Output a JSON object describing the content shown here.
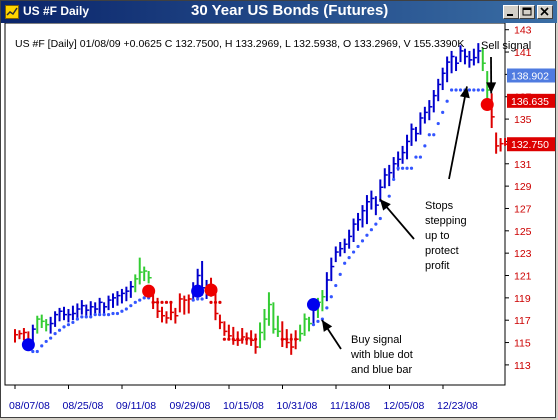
{
  "window": {
    "symbol": "US #F Daily",
    "title": "30 Year US Bonds (Futures)",
    "buttons": [
      "minimize",
      "maximize",
      "close"
    ]
  },
  "colors": {
    "titlebar": "#0a246a",
    "up_bar": "#0000cc",
    "down_bar": "#dd0000",
    "neutral_bar": "#33cc33",
    "buy_dot": "#0000ee",
    "sell_dot": "#ee0000",
    "grid": "#b8d8ea",
    "price_label_blue": "#4f7be0",
    "price_label_red": "#dd0000"
  },
  "chart_data": {
    "type": "ohlc",
    "info_line": "US #F [Daily] 01/08/09 +0.0625 C 132.7500, H 133.2969, L 132.5938, O 133.2969, V 155.3390K",
    "x_ticks": [
      "08/07/08",
      "08/25/08",
      "09/11/08",
      "09/29/08",
      "10/15/08",
      "10/31/08",
      "11/18/08",
      "12/05/08",
      "12/23/08"
    ],
    "y_ticks": [
      113,
      115,
      117,
      119,
      121,
      123,
      125,
      127,
      129,
      131,
      133,
      135,
      137,
      139,
      141,
      143
    ],
    "ylim": [
      111.2,
      143.6
    ],
    "grid": true,
    "price_labels": [
      {
        "text": "138.902",
        "value": 138.902,
        "color": "blue"
      },
      {
        "text": "136.635",
        "value": 136.635,
        "color": "red"
      },
      {
        "text": "132.750",
        "value": 132.75,
        "color": "red"
      }
    ],
    "bars": [
      {
        "h": 116.2,
        "l": 115.0,
        "c": 115.7,
        "color": "red"
      },
      {
        "h": 116.1,
        "l": 115.3,
        "c": 115.8,
        "color": "red"
      },
      {
        "h": 116.3,
        "l": 115.2,
        "c": 115.9,
        "color": "red"
      },
      {
        "h": 116.0,
        "l": 114.8,
        "c": 115.2,
        "color": "red"
      },
      {
        "h": 116.6,
        "l": 114.7,
        "c": 116.2,
        "color": "blue"
      },
      {
        "h": 117.4,
        "l": 115.8,
        "c": 117.1,
        "color": "green"
      },
      {
        "h": 117.5,
        "l": 116.3,
        "c": 116.9,
        "color": "green"
      },
      {
        "h": 117.1,
        "l": 116.0,
        "c": 116.6,
        "color": "green"
      },
      {
        "h": 117.3,
        "l": 115.8,
        "c": 116.7,
        "color": "blue"
      },
      {
        "h": 117.8,
        "l": 116.4,
        "c": 117.5,
        "color": "blue"
      },
      {
        "h": 118.1,
        "l": 116.9,
        "c": 117.8,
        "color": "blue"
      },
      {
        "h": 118.2,
        "l": 117.0,
        "c": 117.5,
        "color": "blue"
      },
      {
        "h": 118.0,
        "l": 116.8,
        "c": 117.5,
        "color": "blue"
      },
      {
        "h": 118.3,
        "l": 117.0,
        "c": 117.6,
        "color": "blue"
      },
      {
        "h": 118.5,
        "l": 117.2,
        "c": 118.0,
        "color": "blue"
      },
      {
        "h": 118.8,
        "l": 117.5,
        "c": 118.3,
        "color": "blue"
      },
      {
        "h": 118.4,
        "l": 117.2,
        "c": 117.9,
        "color": "blue"
      },
      {
        "h": 118.7,
        "l": 117.4,
        "c": 118.2,
        "color": "blue"
      },
      {
        "h": 118.6,
        "l": 117.5,
        "c": 118.0,
        "color": "blue"
      },
      {
        "h": 119.0,
        "l": 117.6,
        "c": 118.6,
        "color": "blue"
      },
      {
        "h": 118.6,
        "l": 117.6,
        "c": 118.2,
        "color": "blue"
      },
      {
        "h": 119.2,
        "l": 117.9,
        "c": 118.8,
        "color": "blue"
      },
      {
        "h": 119.4,
        "l": 118.1,
        "c": 119.0,
        "color": "blue"
      },
      {
        "h": 119.6,
        "l": 118.3,
        "c": 119.2,
        "color": "blue"
      },
      {
        "h": 119.8,
        "l": 118.5,
        "c": 119.4,
        "color": "blue"
      },
      {
        "h": 120.0,
        "l": 118.7,
        "c": 119.6,
        "color": "blue"
      },
      {
        "h": 120.5,
        "l": 119.0,
        "c": 120.0,
        "color": "blue"
      },
      {
        "h": 121.1,
        "l": 119.5,
        "c": 120.7,
        "color": "green"
      },
      {
        "h": 122.6,
        "l": 120.2,
        "c": 121.3,
        "color": "green"
      },
      {
        "h": 121.8,
        "l": 120.5,
        "c": 121.4,
        "color": "green"
      },
      {
        "h": 121.4,
        "l": 120.3,
        "c": 120.8,
        "color": "green"
      },
      {
        "h": 119.3,
        "l": 118.0,
        "c": 118.6,
        "color": "red"
      },
      {
        "h": 119.0,
        "l": 117.2,
        "c": 117.8,
        "color": "red"
      },
      {
        "h": 118.2,
        "l": 116.8,
        "c": 117.4,
        "color": "red"
      },
      {
        "h": 117.8,
        "l": 116.7,
        "c": 117.2,
        "color": "red"
      },
      {
        "h": 118.5,
        "l": 117.0,
        "c": 117.7,
        "color": "red"
      },
      {
        "h": 118.1,
        "l": 116.7,
        "c": 117.4,
        "color": "red"
      },
      {
        "h": 119.4,
        "l": 117.7,
        "c": 118.9,
        "color": "red"
      },
      {
        "h": 119.2,
        "l": 117.5,
        "c": 118.8,
        "color": "red"
      },
      {
        "h": 119.3,
        "l": 117.6,
        "c": 118.9,
        "color": "red"
      },
      {
        "h": 120.4,
        "l": 118.8,
        "c": 119.7,
        "color": "blue"
      },
      {
        "h": 121.6,
        "l": 119.6,
        "c": 121.0,
        "color": "blue"
      },
      {
        "h": 122.3,
        "l": 119.2,
        "c": 119.9,
        "color": "blue"
      },
      {
        "h": 120.6,
        "l": 118.9,
        "c": 119.6,
        "color": "blue"
      },
      {
        "h": 120.8,
        "l": 119.1,
        "c": 119.8,
        "color": "red"
      },
      {
        "h": 119.5,
        "l": 117.0,
        "c": 117.6,
        "color": "red"
      },
      {
        "h": 117.5,
        "l": 116.2,
        "c": 116.8,
        "color": "red"
      },
      {
        "h": 116.9,
        "l": 115.6,
        "c": 116.0,
        "color": "red"
      },
      {
        "h": 116.6,
        "l": 115.2,
        "c": 115.6,
        "color": "red"
      },
      {
        "h": 116.4,
        "l": 114.8,
        "c": 115.2,
        "color": "red"
      },
      {
        "h": 116.0,
        "l": 114.7,
        "c": 115.2,
        "color": "red"
      },
      {
        "h": 116.3,
        "l": 114.9,
        "c": 115.5,
        "color": "red"
      },
      {
        "h": 115.9,
        "l": 114.8,
        "c": 115.4,
        "color": "red"
      },
      {
        "h": 116.1,
        "l": 114.7,
        "c": 115.2,
        "color": "red"
      },
      {
        "h": 115.8,
        "l": 114.0,
        "c": 114.6,
        "color": "red"
      },
      {
        "h": 116.8,
        "l": 114.5,
        "c": 115.9,
        "color": "green"
      },
      {
        "h": 118.0,
        "l": 115.2,
        "c": 117.1,
        "color": "green"
      },
      {
        "h": 119.5,
        "l": 116.5,
        "c": 118.4,
        "color": "green"
      },
      {
        "h": 118.6,
        "l": 115.8,
        "c": 116.2,
        "color": "green"
      },
      {
        "h": 117.4,
        "l": 115.5,
        "c": 116.0,
        "color": "green"
      },
      {
        "h": 116.9,
        "l": 114.6,
        "c": 115.3,
        "color": "red"
      },
      {
        "h": 116.2,
        "l": 114.5,
        "c": 115.0,
        "color": "red"
      },
      {
        "h": 115.8,
        "l": 113.9,
        "c": 114.6,
        "color": "red"
      },
      {
        "h": 116.1,
        "l": 114.4,
        "c": 115.3,
        "color": "red"
      },
      {
        "h": 116.6,
        "l": 115.1,
        "c": 115.8,
        "color": "green"
      },
      {
        "h": 117.6,
        "l": 115.6,
        "c": 117.1,
        "color": "green"
      },
      {
        "h": 117.3,
        "l": 116.0,
        "c": 116.7,
        "color": "green"
      },
      {
        "h": 118.5,
        "l": 116.5,
        "c": 117.9,
        "color": "blue"
      },
      {
        "h": 119.0,
        "l": 117.2,
        "c": 118.6,
        "color": "green"
      },
      {
        "h": 119.7,
        "l": 117.8,
        "c": 119.1,
        "color": "green"
      },
      {
        "h": 121.3,
        "l": 118.7,
        "c": 120.6,
        "color": "blue"
      },
      {
        "h": 122.6,
        "l": 120.5,
        "c": 121.8,
        "color": "blue"
      },
      {
        "h": 123.6,
        "l": 122.2,
        "c": 123.1,
        "color": "blue"
      },
      {
        "h": 124.0,
        "l": 122.7,
        "c": 123.4,
        "color": "blue"
      },
      {
        "h": 124.3,
        "l": 123.0,
        "c": 123.8,
        "color": "blue"
      },
      {
        "h": 125.1,
        "l": 123.4,
        "c": 124.5,
        "color": "blue"
      },
      {
        "h": 126.1,
        "l": 124.0,
        "c": 125.6,
        "color": "blue"
      },
      {
        "h": 126.6,
        "l": 125.0,
        "c": 126.0,
        "color": "blue"
      },
      {
        "h": 127.3,
        "l": 125.3,
        "c": 126.8,
        "color": "blue"
      },
      {
        "h": 128.2,
        "l": 125.6,
        "c": 127.6,
        "color": "blue"
      },
      {
        "h": 128.6,
        "l": 126.9,
        "c": 127.9,
        "color": "blue"
      },
      {
        "h": 128.1,
        "l": 126.4,
        "c": 127.3,
        "color": "blue"
      },
      {
        "h": 129.6,
        "l": 127.6,
        "c": 128.9,
        "color": "blue"
      },
      {
        "h": 130.6,
        "l": 128.8,
        "c": 130.0,
        "color": "blue"
      },
      {
        "h": 130.9,
        "l": 129.0,
        "c": 130.2,
        "color": "blue"
      },
      {
        "h": 131.6,
        "l": 129.6,
        "c": 131.0,
        "color": "blue"
      },
      {
        "h": 132.1,
        "l": 130.4,
        "c": 131.4,
        "color": "blue"
      },
      {
        "h": 132.6,
        "l": 131.0,
        "c": 132.0,
        "color": "blue"
      },
      {
        "h": 133.6,
        "l": 131.4,
        "c": 133.0,
        "color": "blue"
      },
      {
        "h": 134.6,
        "l": 132.6,
        "c": 134.1,
        "color": "blue"
      },
      {
        "h": 134.3,
        "l": 133.0,
        "c": 133.7,
        "color": "blue"
      },
      {
        "h": 135.6,
        "l": 133.6,
        "c": 135.1,
        "color": "blue"
      },
      {
        "h": 136.1,
        "l": 134.6,
        "c": 135.6,
        "color": "blue"
      },
      {
        "h": 136.7,
        "l": 134.9,
        "c": 136.1,
        "color": "blue"
      },
      {
        "h": 137.6,
        "l": 135.6,
        "c": 137.1,
        "color": "blue"
      },
      {
        "h": 138.6,
        "l": 136.6,
        "c": 138.1,
        "color": "blue"
      },
      {
        "h": 139.6,
        "l": 137.6,
        "c": 139.1,
        "color": "blue"
      },
      {
        "h": 140.6,
        "l": 138.3,
        "c": 140.1,
        "color": "blue"
      },
      {
        "h": 141.1,
        "l": 139.1,
        "c": 140.6,
        "color": "blue"
      },
      {
        "h": 140.6,
        "l": 139.3,
        "c": 140.0,
        "color": "blue"
      },
      {
        "h": 141.6,
        "l": 140.1,
        "c": 141.1,
        "color": "blue"
      },
      {
        "h": 141.3,
        "l": 139.9,
        "c": 140.6,
        "color": "blue"
      },
      {
        "h": 141.1,
        "l": 139.6,
        "c": 140.3,
        "color": "blue"
      },
      {
        "h": 141.3,
        "l": 139.8,
        "c": 140.5,
        "color": "blue"
      },
      {
        "h": 141.8,
        "l": 140.0,
        "c": 141.1,
        "color": "blue"
      },
      {
        "h": 141.4,
        "l": 139.3,
        "c": 140.0,
        "color": "green"
      },
      {
        "h": 139.3,
        "l": 136.4,
        "c": 137.6,
        "color": "green"
      },
      {
        "h": 137.3,
        "l": 134.2,
        "c": 135.2,
        "color": "red"
      },
      {
        "h": 133.8,
        "l": 131.9,
        "c": 132.6,
        "color": "red"
      },
      {
        "h": 133.3,
        "l": 132.1,
        "c": 132.8,
        "color": "red"
      },
      {
        "h": 133.3,
        "l": 132.6,
        "c": 132.75,
        "color": "red"
      }
    ],
    "stop_dots": [
      {
        "i": 4,
        "y": 114.2
      },
      {
        "i": 5,
        "y": 114.2
      },
      {
        "i": 6,
        "y": 114.7
      },
      {
        "i": 7,
        "y": 115.1
      },
      {
        "i": 8,
        "y": 115.4
      },
      {
        "i": 9,
        "y": 115.8
      },
      {
        "i": 10,
        "y": 116.1
      },
      {
        "i": 11,
        "y": 116.4
      },
      {
        "i": 12,
        "y": 116.6
      },
      {
        "i": 13,
        "y": 116.8
      },
      {
        "i": 14,
        "y": 117.1
      },
      {
        "i": 15,
        "y": 117.3
      },
      {
        "i": 16,
        "y": 117.3
      },
      {
        "i": 17,
        "y": 117.3
      },
      {
        "i": 18,
        "y": 117.5
      },
      {
        "i": 19,
        "y": 117.5
      },
      {
        "i": 20,
        "y": 117.5
      },
      {
        "i": 21,
        "y": 117.5
      },
      {
        "i": 22,
        "y": 117.6
      },
      {
        "i": 23,
        "y": 117.6
      },
      {
        "i": 24,
        "y": 117.8
      },
      {
        "i": 25,
        "y": 118.0
      },
      {
        "i": 26,
        "y": 118.3
      },
      {
        "i": 27,
        "y": 118.6
      },
      {
        "i": 28,
        "y": 118.8
      },
      {
        "i": 29,
        "y": 119.0
      },
      {
        "i": 30,
        "y": 119.0
      },
      {
        "i": 31,
        "y": 118.6
      },
      {
        "i": 32,
        "y": 118.6
      },
      {
        "i": 33,
        "y": 118.6
      },
      {
        "i": 34,
        "y": 118.6
      },
      {
        "i": 35,
        "y": 118.6
      },
      {
        "i": 40,
        "y": 118.8
      },
      {
        "i": 41,
        "y": 118.9
      },
      {
        "i": 42,
        "y": 118.9
      },
      {
        "i": 44,
        "y": 118.6
      },
      {
        "i": 45,
        "y": 118.6
      },
      {
        "i": 46,
        "y": 118.6
      },
      {
        "i": 47,
        "y": 115.3
      },
      {
        "i": 48,
        "y": 115.3
      },
      {
        "i": 49,
        "y": 115.3
      },
      {
        "i": 50,
        "y": 115.3
      },
      {
        "i": 51,
        "y": 115.3
      },
      {
        "i": 52,
        "y": 115.3
      },
      {
        "i": 53,
        "y": 115.3
      },
      {
        "i": 54,
        "y": 115.3
      },
      {
        "i": 60,
        "y": 115.3
      },
      {
        "i": 61,
        "y": 115.3
      },
      {
        "i": 62,
        "y": 115.3
      },
      {
        "i": 63,
        "y": 115.3
      },
      {
        "i": 67,
        "y": 116.6
      },
      {
        "i": 68,
        "y": 116.9
      },
      {
        "i": 69,
        "y": 117.1
      },
      {
        "i": 70,
        "y": 118.1
      },
      {
        "i": 71,
        "y": 119.1
      },
      {
        "i": 72,
        "y": 120.1
      },
      {
        "i": 73,
        "y": 121.1
      },
      {
        "i": 74,
        "y": 122.1
      },
      {
        "i": 75,
        "y": 122.6
      },
      {
        "i": 76,
        "y": 123.1
      },
      {
        "i": 77,
        "y": 123.6
      },
      {
        "i": 78,
        "y": 124.1
      },
      {
        "i": 79,
        "y": 124.6
      },
      {
        "i": 80,
        "y": 125.1
      },
      {
        "i": 81,
        "y": 125.6
      },
      {
        "i": 82,
        "y": 126.1
      },
      {
        "i": 83,
        "y": 127.1
      },
      {
        "i": 84,
        "y": 128.1
      },
      {
        "i": 85,
        "y": 129.6
      },
      {
        "i": 86,
        "y": 130.6
      },
      {
        "i": 87,
        "y": 130.6
      },
      {
        "i": 88,
        "y": 130.6
      },
      {
        "i": 89,
        "y": 130.6
      },
      {
        "i": 90,
        "y": 131.6
      },
      {
        "i": 91,
        "y": 131.6
      },
      {
        "i": 92,
        "y": 132.6
      },
      {
        "i": 93,
        "y": 133.6
      },
      {
        "i": 94,
        "y": 133.6
      },
      {
        "i": 95,
        "y": 134.6
      },
      {
        "i": 96,
        "y": 135.6
      },
      {
        "i": 97,
        "y": 136.6
      },
      {
        "i": 98,
        "y": 137.6
      },
      {
        "i": 99,
        "y": 137.6
      },
      {
        "i": 100,
        "y": 137.6
      },
      {
        "i": 101,
        "y": 137.6
      },
      {
        "i": 102,
        "y": 137.6
      },
      {
        "i": 103,
        "y": 137.6
      },
      {
        "i": 104,
        "y": 137.6
      },
      {
        "i": 105,
        "y": 137.6
      }
    ],
    "signals": [
      {
        "i": 3,
        "y": 114.8,
        "type": "buy"
      },
      {
        "i": 30,
        "y": 119.6,
        "type": "sell"
      },
      {
        "i": 41,
        "y": 119.6,
        "type": "buy"
      },
      {
        "i": 44,
        "y": 119.7,
        "type": "sell"
      },
      {
        "i": 67,
        "y": 118.4,
        "type": "buy"
      },
      {
        "i": 106,
        "y": 136.3,
        "type": "sell"
      }
    ],
    "annotations": [
      {
        "lines": [
          "Sell signal"
        ],
        "arrow_to_bar": 106,
        "arrow_to_value": 137.3
      },
      {
        "lines": [
          "Stops",
          "stepping",
          "up to",
          "protect",
          "profit"
        ],
        "arrow_to_bar": 101,
        "arrow_to_value": 138.1,
        "arrow2_to_bar": 81,
        "arrow2_to_value": 128.2
      },
      {
        "lines": [
          "Buy signal",
          "with blue dot",
          "and blue bar"
        ],
        "arrow_to_bar": 68,
        "arrow_to_value": 117.2
      }
    ]
  }
}
